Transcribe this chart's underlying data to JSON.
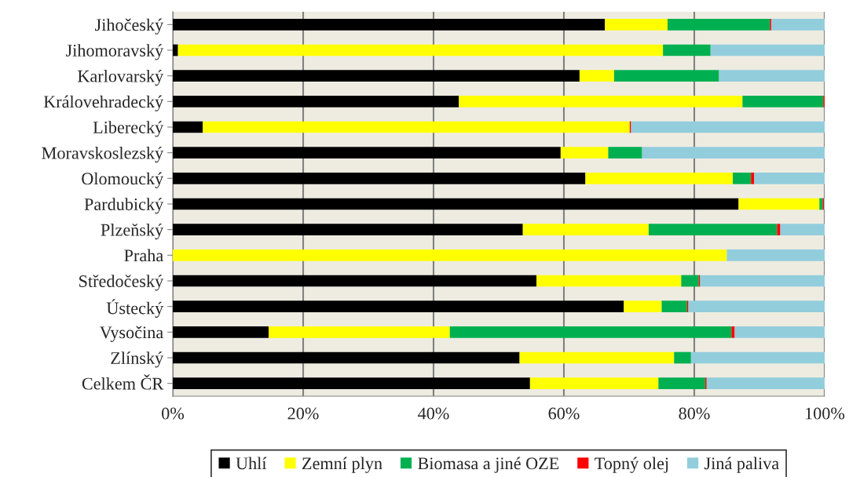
{
  "chart_data": {
    "type": "bar",
    "orientation": "horizontal",
    "stacked": true,
    "categories": [
      "Jihočeský",
      "Jihomoravský",
      "Karlovarský",
      "Královehradecký",
      "Liberecký",
      "Moravskoslezský",
      "Olomoucký",
      "Pardubický",
      "Plzeňský",
      "Praha",
      "Středočeský",
      "Ústecký",
      "Vysočina",
      "Zlínský",
      "Celkem ČR"
    ],
    "series": [
      {
        "name": "Uhlí",
        "color": "#000000",
        "values": [
          66.3,
          0.8,
          62.4,
          43.9,
          4.6,
          59.5,
          63.3,
          86.8,
          53.7,
          0,
          55.8,
          69.2,
          14.7,
          53.2,
          54.8
        ]
      },
      {
        "name": "Zemní plyn",
        "color": "#ffff00",
        "values": [
          9.6,
          74.4,
          5.3,
          43.5,
          65.5,
          7.3,
          22.6,
          12.4,
          19.3,
          85.0,
          22.2,
          5.8,
          27.8,
          23.7,
          19.7
        ]
      },
      {
        "name": "Biomasa a jiné OZE",
        "color": "#00b050",
        "values": [
          15.7,
          7.3,
          16.1,
          12.4,
          0,
          5.2,
          2.8,
          0.5,
          19.7,
          0,
          2.7,
          3.9,
          43.2,
          2.6,
          7.2
        ]
      },
      {
        "name": "Topný olej",
        "color": "#ff0000",
        "values": [
          0.2,
          0,
          0,
          0.2,
          0.2,
          0,
          0.5,
          0.2,
          0.5,
          0,
          0.2,
          0.2,
          0.5,
          0,
          0.2
        ]
      },
      {
        "name": "Jiná paliva",
        "color": "#92cddc",
        "values": [
          8.2,
          17.5,
          16.2,
          0,
          29.7,
          28.0,
          10.8,
          0.1,
          6.8,
          15.0,
          19.1,
          20.9,
          13.8,
          20.5,
          18.1
        ]
      }
    ],
    "xlim": [
      0,
      100
    ],
    "xticks": [
      {
        "value": 0,
        "label": "0%"
      },
      {
        "value": 20,
        "label": "20%"
      },
      {
        "value": 40,
        "label": "40%"
      },
      {
        "value": 60,
        "label": "60%"
      },
      {
        "value": 80,
        "label": "80%"
      },
      {
        "value": 100,
        "label": "100%"
      }
    ],
    "grid": "x",
    "legend": "bottom"
  }
}
